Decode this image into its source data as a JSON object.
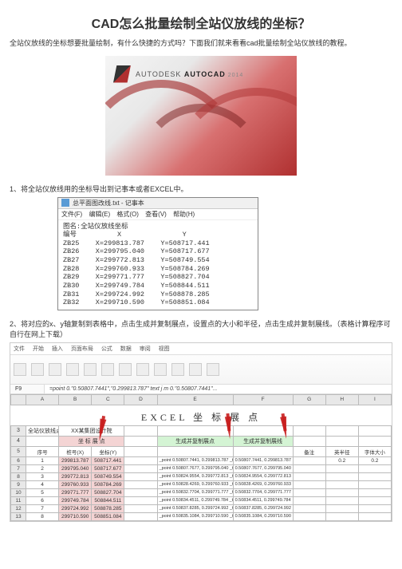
{
  "page": {
    "title": "CAD怎么批量绘制全站仪放线的坐标？",
    "intro": "全站仪放线的坐标想要批量绘制，有什么快捷的方式吗？下面我们就来看看cad批量绘制全站仪放线的教程。"
  },
  "hero": {
    "brand_prefix": "AUTODESK",
    "brand_bold": "AUTOCAD",
    "year": "2014"
  },
  "step1": {
    "text": "1、将全站仪放线用的坐标导出到记事本或者EXCEL中。"
  },
  "notepad": {
    "title_text": "总平面图改线.txt - 记事本",
    "menu": [
      "文件(F)",
      "编辑(E)",
      "格式(O)",
      "查看(V)",
      "帮助(H)"
    ],
    "header_line": "图名:全站仪放线坐标",
    "col_header": "编号          X               Y",
    "rows": [
      "ZB25    X=299813.787    Y=508717.441",
      "ZB26    X=299795.040    Y=508717.677",
      "ZB27    X=299772.813    Y=508749.554",
      "ZB28    X=299760.933    Y=508784.269",
      "ZB29    X=299771.777    Y=508827.704",
      "ZB30    X=299749.784    Y=508844.511",
      "ZB31    X=299724.992    Y=508878.285",
      "ZB32    X=299710.590    Y=508851.084"
    ]
  },
  "step2": {
    "text": "2、将对应的x、y轴复制到表格中，点击生成并复制展点，设置点的大小和半径，点击生成并复制展线。（表格计算程序可自行在网上下载）"
  },
  "excel": {
    "ribbon_tabs": [
      "文件",
      "开始",
      "插入",
      "页面布局",
      "公式",
      "数据",
      "审阅",
      "视图"
    ],
    "formula_cell": "F9",
    "formula_text": "=point 0.\"0.50807.7441\",\"0.299813.787\" text j m 0.\"0.50807.7441\"...",
    "sheet_title": "EXCEL 坐 标 展 点",
    "col_letters": [
      "A",
      "B",
      "C",
      "D",
      "E",
      "F",
      "G",
      "H",
      "I",
      "J",
      "K",
      "L"
    ],
    "group_headers": {
      "left": "全站仪放线点",
      "coord": "坐 标 展 点",
      "gen1": "生成并复制展点",
      "gen2": "生成并复制展线"
    },
    "sub_headers": [
      "序号",
      "桩号(X)",
      "坐标(Y)",
      "",
      "",
      "",
      "备注",
      "英半径",
      "字体大小"
    ],
    "company": "XX某集团设计院",
    "rows": [
      {
        "n": "1",
        "x": "299813.787",
        "y": "508717.441",
        "f": "_point 0.50807.7441, 0.299813.787 _text j m 0.50807.7441, 0.299813.787 0.2 0 1",
        "g": "0.50807.7441, 0.299813.787",
        "r": "0.2",
        "s": "0.2"
      },
      {
        "n": "2",
        "x": "299795.040",
        "y": "508717.677",
        "f": "_point 0.50807.7677, 0.299795.040 _text j m 0.50807.7677, 0.299795.040 0.2 0 2",
        "g": "0.50807.7677, 0.299795.040",
        "r": "",
        "s": ""
      },
      {
        "n": "3",
        "x": "299772.813",
        "y": "508749.554",
        "f": "_point 0.50824.9554, 0.299772.813 _text j m 0.50824.9554, 0.299772.813 0.2 0 3",
        "g": "0.50824.9554, 0.299772.813",
        "r": "",
        "s": ""
      },
      {
        "n": "4",
        "x": "299760.933",
        "y": "508784.269",
        "f": "_point 0.50828.4269, 0.299760.933 _text j m 0.50828.4269, 0.299760.933 0.2 0 4",
        "g": "0.50828.4269, 0.299760.933",
        "r": "",
        "s": ""
      },
      {
        "n": "5",
        "x": "299771.777",
        "y": "508827.704",
        "f": "_point 0.50832.7704, 0.299771.777 _text j m 0.50832.7704, 0.299771.777 0.2 0 5",
        "g": "0.50832.7704, 0.299771.777",
        "r": "",
        "s": ""
      },
      {
        "n": "6",
        "x": "299749.784",
        "y": "508844.511",
        "f": "_point 0.50834.4511, 0.299749.784 _text j m 0.50834.4511, 0.299749.784 0.2 0 6",
        "g": "0.50834.4511, 0.299749.784",
        "r": "",
        "s": ""
      },
      {
        "n": "7",
        "x": "299724.992",
        "y": "508878.285",
        "f": "_point 0.50837.8285, 0.299724.992 _text j m 0.50837.8285, 0.299724.992 0.2 0 7",
        "g": "0.50837.8285, 0.299724.992",
        "r": "",
        "s": ""
      },
      {
        "n": "8",
        "x": "299710.590",
        "y": "508851.084",
        "f": "_point 0.50835.1084, 0.299710.590 _text j m 0.50835.1084, 0.299710.590 0.2 0 8",
        "g": "0.50835.1084, 0.299710.590",
        "r": "",
        "s": ""
      }
    ]
  },
  "colors": {
    "accent_red": "#b03030",
    "grid_border": "#bbbbbb",
    "header_bg": "#e8e8e8",
    "hl_green": "#d4f4d4",
    "hl_red": "#f4d4d4"
  }
}
